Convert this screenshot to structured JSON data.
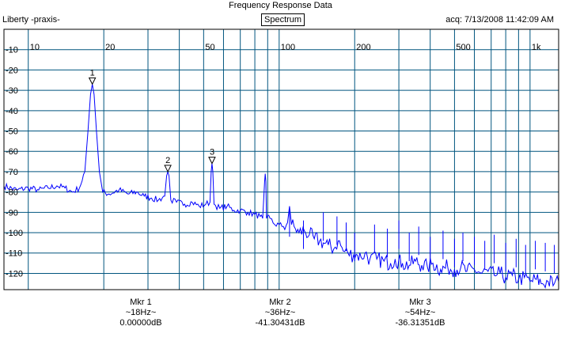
{
  "header": {
    "title": "Frequency Response Data",
    "app_name": "Liberty -praxis-",
    "mode_button": "Spectrum",
    "acquired": "acq: 7/13/2008 11:42:09 AM"
  },
  "colors": {
    "trace": "#0000ff",
    "grid": "#00557f",
    "frame": "#000000",
    "background": "#ffffff"
  },
  "chart_data": {
    "type": "line",
    "title": "Frequency Response Data",
    "xscale": "log",
    "xlim": [
      8,
      1300
    ],
    "ylim": [
      -128,
      0
    ],
    "x_ticks": [
      {
        "value": 10,
        "label": "10"
      },
      {
        "value": 20,
        "label": "20"
      },
      {
        "value": 50,
        "label": "50"
      },
      {
        "value": 100,
        "label": "100"
      },
      {
        "value": 200,
        "label": "200"
      },
      {
        "value": 500,
        "label": "500"
      },
      {
        "value": 1000,
        "label": "1k"
      }
    ],
    "x_gridlines": [
      10,
      20,
      30,
      40,
      50,
      60,
      70,
      80,
      90,
      100,
      200,
      300,
      400,
      500,
      600,
      700,
      800,
      900,
      1000
    ],
    "y_ticks": [
      {
        "value": -10,
        "label": "-10"
      },
      {
        "value": -20,
        "label": "-20"
      },
      {
        "value": -30,
        "label": "-30"
      },
      {
        "value": -40,
        "label": "-40"
      },
      {
        "value": -50,
        "label": "-50"
      },
      {
        "value": -60,
        "label": "-60"
      },
      {
        "value": -70,
        "label": "-70"
      },
      {
        "value": -80,
        "label": "-80"
      },
      {
        "value": -90,
        "label": "-90"
      },
      {
        "value": -100,
        "label": "-100"
      },
      {
        "value": -110,
        "label": "-110"
      },
      {
        "value": -120,
        "label": "-120"
      }
    ],
    "grid": true,
    "series": [
      {
        "values": [
          [
            8,
            -77
          ],
          [
            9,
            -79
          ],
          [
            10,
            -78
          ],
          [
            11,
            -79
          ],
          [
            12,
            -78
          ],
          [
            13,
            -77
          ],
          [
            14,
            -78
          ],
          [
            15,
            -80
          ],
          [
            16,
            -78
          ],
          [
            16.8,
            -70
          ],
          [
            17.3,
            -50
          ],
          [
            17.7,
            -32
          ],
          [
            18,
            -27
          ],
          [
            18.3,
            -32
          ],
          [
            18.7,
            -50
          ],
          [
            19.2,
            -70
          ],
          [
            19.8,
            -80
          ],
          [
            21,
            -81
          ],
          [
            23,
            -79
          ],
          [
            25,
            -81
          ],
          [
            27,
            -80
          ],
          [
            29,
            -82
          ],
          [
            31,
            -83
          ],
          [
            33,
            -84
          ],
          [
            35,
            -82
          ],
          [
            35.6,
            -72
          ],
          [
            36,
            -70
          ],
          [
            36.4,
            -72
          ],
          [
            37,
            -84
          ],
          [
            39,
            -85
          ],
          [
            42,
            -86
          ],
          [
            45,
            -85
          ],
          [
            48,
            -87
          ],
          [
            51,
            -86
          ],
          [
            53,
            -85
          ],
          [
            53.6,
            -70
          ],
          [
            54,
            -66
          ],
          [
            54.4,
            -70
          ],
          [
            55,
            -86
          ],
          [
            58,
            -88
          ],
          [
            62,
            -87
          ],
          [
            66,
            -89
          ],
          [
            70,
            -89
          ],
          [
            75,
            -90
          ],
          [
            80,
            -91
          ],
          [
            84,
            -92
          ],
          [
            86,
            -93
          ],
          [
            87.5,
            -75
          ],
          [
            88,
            -71
          ],
          [
            88.5,
            -75
          ],
          [
            89,
            -93
          ],
          [
            92,
            -93
          ],
          [
            96,
            -96
          ],
          [
            100,
            -96
          ],
          [
            104,
            -97
          ],
          [
            108,
            -95
          ],
          [
            110,
            -87
          ],
          [
            112,
            -96
          ],
          [
            116,
            -98
          ],
          [
            120,
            -100
          ],
          [
            126,
            -99
          ],
          [
            132,
            -101
          ],
          [
            138,
            -103
          ],
          [
            145,
            -104
          ],
          [
            150,
            -105
          ],
          [
            157,
            -106
          ],
          [
            165,
            -108
          ],
          [
            172,
            -104
          ],
          [
            180,
            -109
          ],
          [
            188,
            -110
          ],
          [
            198,
            -111
          ],
          [
            205,
            -111
          ],
          [
            212,
            -112
          ],
          [
            220,
            -110
          ],
          [
            230,
            -113
          ],
          [
            245,
            -113
          ],
          [
            262,
            -114
          ],
          [
            278,
            -115
          ],
          [
            290,
            -113
          ],
          [
            310,
            -115
          ],
          [
            330,
            -116
          ],
          [
            350,
            -114
          ],
          [
            370,
            -116
          ],
          [
            390,
            -117
          ],
          [
            410,
            -115
          ],
          [
            440,
            -118
          ],
          [
            470,
            -117
          ],
          [
            500,
            -118
          ],
          [
            530,
            -117
          ],
          [
            560,
            -119
          ],
          [
            600,
            -118
          ],
          [
            640,
            -120
          ],
          [
            680,
            -119
          ],
          [
            720,
            -121
          ],
          [
            760,
            -120
          ],
          [
            800,
            -122
          ],
          [
            850,
            -121
          ],
          [
            900,
            -123
          ],
          [
            950,
            -122
          ],
          [
            1000,
            -124
          ],
          [
            1060,
            -123
          ],
          [
            1120,
            -125
          ],
          [
            1180,
            -124
          ],
          [
            1250,
            -125
          ],
          [
            1300,
            -124
          ]
        ]
      }
    ],
    "spikes": [
      [
        110,
        -88
      ],
      [
        125,
        -94
      ],
      [
        150,
        -90
      ],
      [
        170,
        -92
      ],
      [
        185,
        -95
      ],
      [
        200,
        -100
      ],
      [
        240,
        -96
      ],
      [
        270,
        -98
      ],
      [
        300,
        -94
      ],
      [
        330,
        -100
      ],
      [
        360,
        -97
      ],
      [
        400,
        -102
      ],
      [
        450,
        -99
      ],
      [
        500,
        -103
      ],
      [
        540,
        -100
      ],
      [
        600,
        -102
      ],
      [
        660,
        -104
      ],
      [
        720,
        -101
      ],
      [
        800,
        -105
      ],
      [
        880,
        -103
      ],
      [
        960,
        -106
      ],
      [
        1050,
        -104
      ],
      [
        1150,
        -105
      ],
      [
        1250,
        -106
      ]
    ],
    "markers": [
      {
        "label": "1",
        "x": 18,
        "y": 0.0
      },
      {
        "label": "2",
        "x": 36,
        "y": -41.30431
      },
      {
        "label": "3",
        "x": 54,
        "y": -36.31351
      }
    ]
  },
  "readouts": [
    {
      "title": "Mkr 1",
      "freq": "~18Hz~",
      "value": "0.00000dB"
    },
    {
      "title": "Mkr 2",
      "freq": "~36Hz~",
      "value": "-41.30431dB"
    },
    {
      "title": "Mkr 3",
      "freq": "~54Hz~",
      "value": "-36.31351dB"
    }
  ]
}
